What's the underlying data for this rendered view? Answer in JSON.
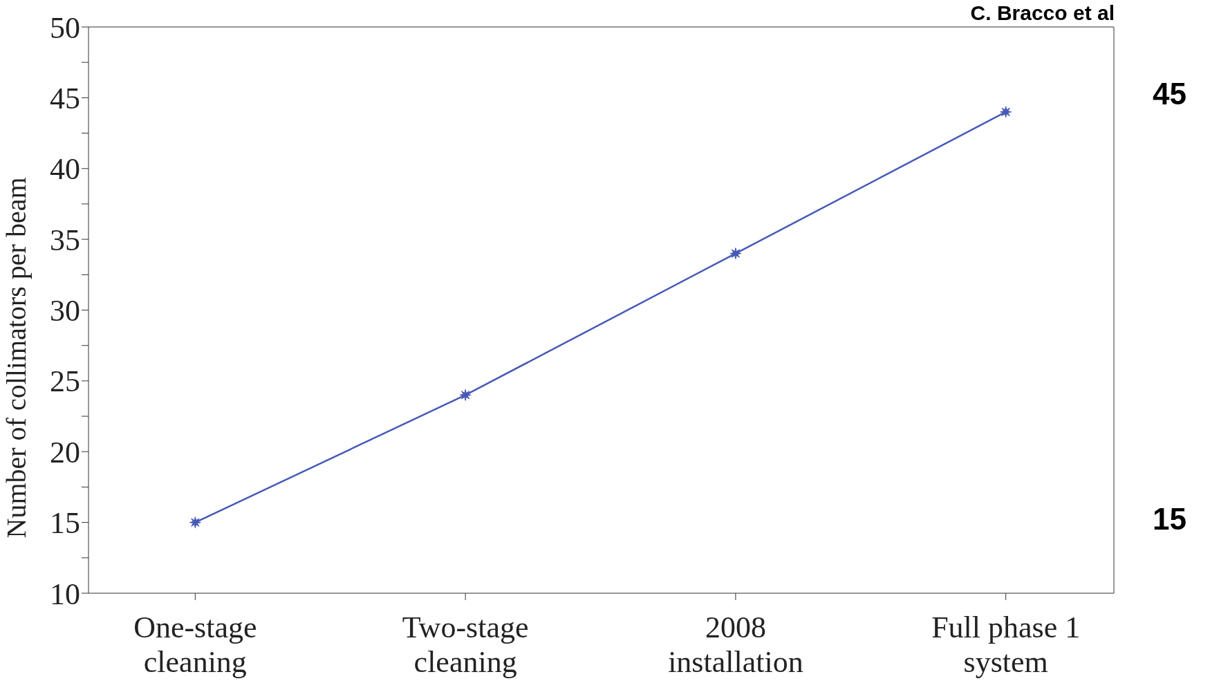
{
  "chart_data": {
    "type": "line",
    "ylabel": "Number of collimators per beam",
    "categories": [
      "One-stage cleaning",
      "Two-stage cleaning",
      "2008 installation",
      "Full phase 1 system"
    ],
    "series": [
      {
        "color": "#4659b6",
        "values": [
          15,
          24,
          34,
          44
        ]
      }
    ],
    "ylim": [
      10,
      50
    ],
    "yticks": [
      10,
      {
        "value": 12.5,
        "label": null
      },
      15,
      {
        "value": 17.5,
        "label": null
      },
      20,
      {
        "value": 22.5,
        "label": null
      },
      25,
      {
        "value": 27.5,
        "label": null
      },
      30,
      {
        "value": 32.5,
        "label": null
      },
      35,
      {
        "value": 37.5,
        "label": null
      },
      40,
      {
        "value": 42.5,
        "label": null
      },
      45,
      {
        "value": 47.5,
        "label": null
      },
      50
    ],
    "marker": "star",
    "line_style": "solid",
    "annotations": [
      "C. Bracco et al",
      "45",
      "15"
    ]
  }
}
